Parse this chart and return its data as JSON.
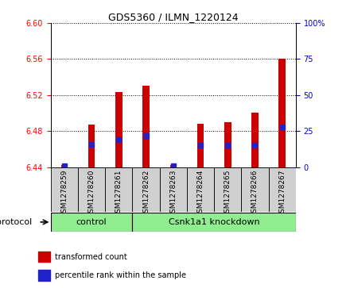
{
  "title": "GDS5360 / ILMN_1220124",
  "samples": [
    "GSM1278259",
    "GSM1278260",
    "GSM1278261",
    "GSM1278262",
    "GSM1278263",
    "GSM1278264",
    "GSM1278265",
    "GSM1278266",
    "GSM1278267"
  ],
  "transformed_counts": [
    6.442,
    6.487,
    6.523,
    6.53,
    6.442,
    6.488,
    6.49,
    6.5,
    6.56
  ],
  "percentile_ranks": [
    1,
    16,
    19,
    22,
    1,
    15,
    15,
    15,
    28
  ],
  "ylim_left": [
    6.44,
    6.6
  ],
  "ylim_right": [
    0,
    100
  ],
  "yticks_left": [
    6.44,
    6.48,
    6.52,
    6.56,
    6.6
  ],
  "yticks_right": [
    0,
    25,
    50,
    75,
    100
  ],
  "bar_color_red": "#cc0000",
  "bar_color_blue": "#2222cc",
  "control_count": 3,
  "knockdown_count": 6,
  "group_labels": [
    "control",
    "Csnk1a1 knockdown"
  ],
  "group_color": "#90ee90",
  "protocol_label": "protocol",
  "legend_items": [
    {
      "label": "transformed count",
      "color": "#cc0000"
    },
    {
      "label": "percentile rank within the sample",
      "color": "#2222cc"
    }
  ],
  "bar_width": 0.25,
  "baseline": 6.44,
  "ticklabel_bg": "#d0d0d0",
  "plot_bg": "#ffffff",
  "right_axis_label_color": "#0000cc"
}
